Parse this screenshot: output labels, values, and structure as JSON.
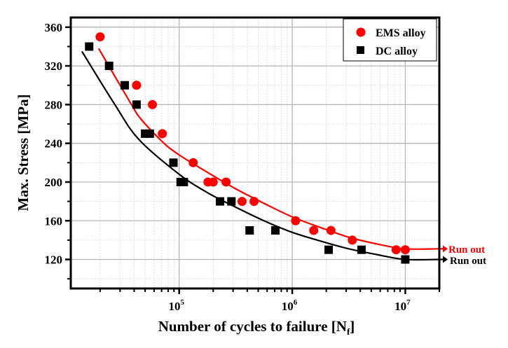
{
  "chart_data": {
    "type": "scatter",
    "title": "",
    "xlabel": "Number of cycles to failure [N",
    "xlabel_sub": "f",
    "xlabel_close": "]",
    "ylabel": "Max. Stress [MPa]",
    "xscale": "log",
    "xlim": [
      11000,
      20000000
    ],
    "ylim": [
      90,
      370
    ],
    "grid": true,
    "legend_position": "top-right",
    "x_ticks": [
      {
        "value": 100000,
        "base": "10",
        "exp": "5"
      },
      {
        "value": 1000000,
        "base": "10",
        "exp": "6"
      },
      {
        "value": 10000000,
        "base": "10",
        "exp": "7"
      }
    ],
    "y_ticks": [
      120,
      160,
      200,
      240,
      280,
      320,
      360
    ],
    "series": [
      {
        "name": "EMS alloy",
        "color": "#ff0000",
        "marker": "circle",
        "points": [
          [
            20000,
            350
          ],
          [
            42000,
            300
          ],
          [
            58000,
            280
          ],
          [
            71000,
            250
          ],
          [
            133000,
            220
          ],
          [
            180000,
            200
          ],
          [
            200000,
            200
          ],
          [
            260000,
            200
          ],
          [
            360000,
            180
          ],
          [
            460000,
            180
          ],
          [
            1070000,
            160
          ],
          [
            1550000,
            150
          ],
          [
            2200000,
            150
          ],
          [
            3400000,
            140
          ],
          [
            8300000,
            130
          ],
          [
            10000000,
            130
          ]
        ],
        "fit_curve": [
          [
            19400,
            338
          ],
          [
            37000,
            282
          ],
          [
            46000,
            265
          ],
          [
            72000,
            241
          ],
          [
            100000,
            228
          ],
          [
            178000,
            210
          ],
          [
            316000,
            193
          ],
          [
            562000,
            178
          ],
          [
            1000000,
            164
          ],
          [
            1780000,
            153
          ],
          [
            3160000,
            143
          ],
          [
            5620000,
            136
          ],
          [
            10000000,
            131
          ],
          [
            20000000,
            131
          ]
        ],
        "runout_label": "Run out"
      },
      {
        "name": "DC alloy",
        "color": "#000000",
        "marker": "square",
        "points": [
          [
            16000,
            340
          ],
          [
            24000,
            320
          ],
          [
            33000,
            300
          ],
          [
            42000,
            280
          ],
          [
            50000,
            250
          ],
          [
            55000,
            250
          ],
          [
            89000,
            220
          ],
          [
            103000,
            200
          ],
          [
            110000,
            200
          ],
          [
            230000,
            180
          ],
          [
            290000,
            180
          ],
          [
            420000,
            150
          ],
          [
            710000,
            150
          ],
          [
            2100000,
            130
          ],
          [
            4100000,
            130
          ],
          [
            10000000,
            120
          ]
        ],
        "fit_curve": [
          [
            13800,
            335
          ],
          [
            27000,
            280
          ],
          [
            44000,
            244
          ],
          [
            100000,
            208
          ],
          [
            178000,
            189
          ],
          [
            316000,
            174
          ],
          [
            562000,
            160
          ],
          [
            1000000,
            148
          ],
          [
            1780000,
            139
          ],
          [
            3160000,
            131
          ],
          [
            5620000,
            125
          ],
          [
            10000000,
            120
          ],
          [
            20000000,
            120
          ]
        ],
        "runout_label": "Run out"
      }
    ],
    "annotations": [
      "Run out",
      "Run out"
    ]
  },
  "colors": {
    "axis": "#000000",
    "major_grid": "#b4b4b4",
    "minor_grid": "#dcdcdc",
    "ems": "#ff0000",
    "dc": "#000000"
  }
}
